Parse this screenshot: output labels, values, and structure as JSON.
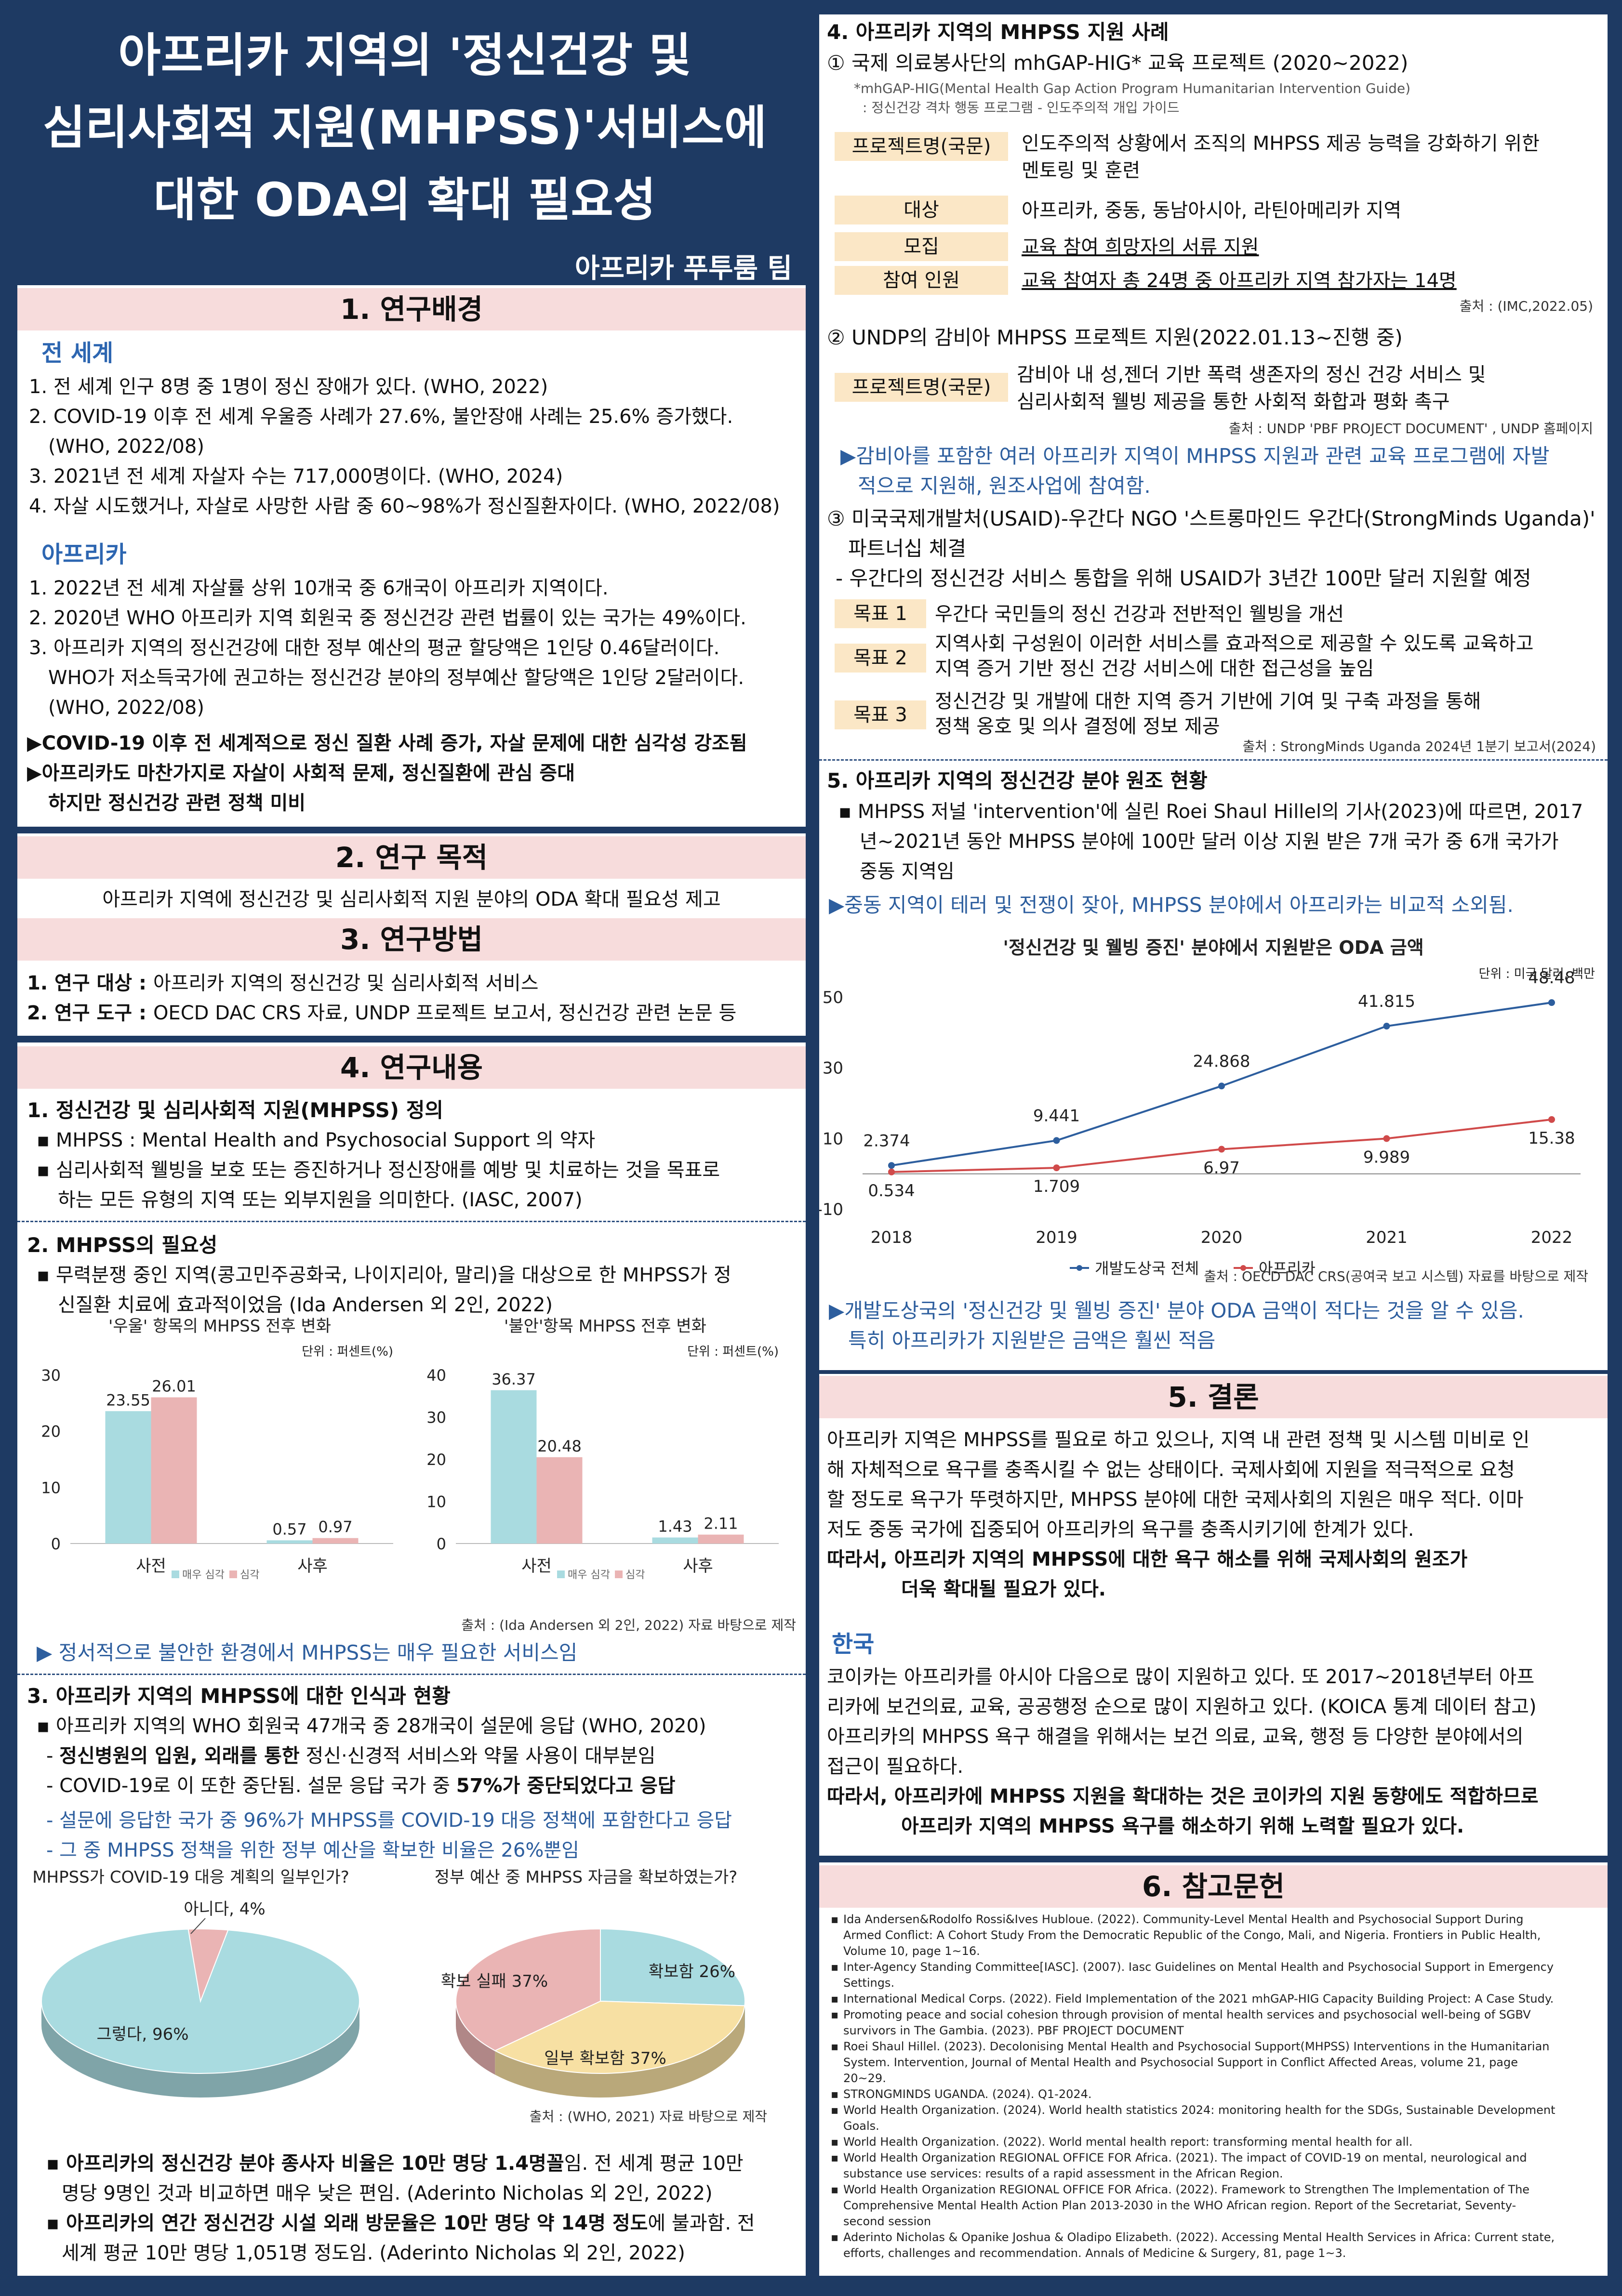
{
  "title": {
    "line1": "아프리카 지역의 '정신건강 및",
    "line2": "심리사회적 지원(MHPSS)'서비스에",
    "line3": "대한 ODA의 확대 필요성",
    "team": "아프리카 푸투룸 팀"
  },
  "s1": {
    "head": "1. 연구배경",
    "world_label": "전 세계",
    "world": [
      "1. 전 세계 인구 8명 중 1명이 정신 장애가 있다. (WHO, 2022)",
      "2. COVID-19 이후 전 세계 우울증 사례가 27.6%, 불안장애 사례는 25.6% 증가했다.",
      "(WHO, 2022/08)",
      "3. 2021년 전 세계 자살자 수는 717,000명이다. (WHO, 2024)",
      "4. 자살 시도했거나, 자살로 사망한 사람 중 60~98%가 정신질환자이다. (WHO, 2022/08)"
    ],
    "africa_label": "아프리카",
    "africa": [
      "1. 2022년 전 세계 자살률 상위 10개국 중 6개국이 아프리카 지역이다.",
      "2. 2020년 WHO 아프리카 지역 회원국 중 정신건강 관련 법률이 있는 국가는 49%이다.",
      "3. 아프리카 지역의 정신건강에 대한 정부 예산의 평균 할당액은 1인당 0.46달러이다.",
      "WHO가 저소득국가에 권고하는 정신건강 분야의 정부예산 할당액은 1인당 2달러이다.",
      "(WHO, 2022/08)"
    ],
    "conc1": "▶COVID-19 이후 전 세계적으로 정신 질환 사례 증가, 자살 문제에 대한 심각성 강조됨",
    "conc2": "▶아프리카도 마찬가지로 자살이 사회적 문제, 정신질환에 관심 증대",
    "conc3": "하지만 정신건강 관련 정책 미비"
  },
  "s2": {
    "head": "2. 연구 목적",
    "text": "아프리카 지역에 정신건강 및 심리사회적 지원 분야의 ODA 확대 필요성 제고"
  },
  "s3": {
    "head": "3. 연구방법",
    "l1_bold": "1. 연구 대상 : ",
    "l1": "아프리카 지역의 정신건강 및 심리사회적 서비스",
    "l2_bold": "2. 연구 도구 : ",
    "l2": "OECD DAC CRS 자료, UNDP 프로젝트 보고서, 정신건강 관련 논문 등"
  },
  "s4": {
    "head": "4. 연구내용",
    "p1_title": "1. 정신건강 및 심리사회적 지원(MHPSS) 정의",
    "p1_a": "▪  MHPSS : Mental Health and Psychosocial Support 의 약자",
    "p1_b": "▪  심리사회적 웰빙을 보호 또는 증진하거나 정신장애를 예방 및 치료하는 것을 목표로",
    "p1_c": "하는 모든 유형의 지역 또는 외부지원을 의미한다. (IASC, 2007)",
    "p2_title": "2. MHPSS의 필요성",
    "p2_a": "▪  무력분쟁 중인 지역(콩고민주공화국, 나이지리아, 말리)을 대상으로 한 MHPSS가 정",
    "p2_b": "신질환 치료에 효과적이었음 (Ida Andersen 외 2인, 2022)",
    "p2_source": "출처 : (Ida Andersen 외 2인, 2022) 자료 바탕으로 제작",
    "p2_conc": "▶ 정서적으로 불안한 환경에서 MHPSS는 매우 필요한 서비스임",
    "p3_title": "3. 아프리카 지역의 MHPSS에 대한 인식과 현황",
    "p3_a": "▪  아프리카 지역의 WHO 회원국 47개국 중 28개국이 설문에 응답 (WHO, 2020)",
    "p3_b1": "-  ",
    "p3_b_bold": "정신병원의 입원, 외래를 통한",
    "p3_b2": " 정신·신경적 서비스와 약물 사용이 대부분임",
    "p3_c1": "-  COVID-19로 이 또한 중단됨. 설문 응답 국가 중 ",
    "p3_c_bold": "57%가 중단되었다고 응답",
    "p3_d": "-  설문에 응답한 국가 중 96%가 MHPSS를 COVID-19 대응 정책에 포함한다고 응답",
    "p3_e": "-  그 중 MHPSS 정책을 위한 정부 예산을 확보한 비율은 26%뿐임",
    "pie_source": "출처 : (WHO, 2021) 자료 바탕으로 제작",
    "b1_bold": "▪  아프리카의 정신건강 분야 종사자 비율은 10만 명당 1.4명꼴",
    "b1": "임. 전 세계 평균 10만",
    "b1_c": "명당 9명인 것과 비교하면 매우 낮은 편임. (Aderinto Nicholas 외 2인, 2022)",
    "b2_bold": "▪  아프리카의 연간 정신건강 시설 외래 방문율은 10만 명당 약 14명 정도",
    "b2": "에 불과함. 전",
    "b2_c": "세계 평균 10만 명당 1,051명 정도임. (Aderinto Nicholas 외 2인, 2022)"
  },
  "s4r": {
    "p4_title": "4. 아프리카 지역의 MHPSS 지원 사례",
    "c1_title": "① 국제 의료봉사단의 mhGAP-HIG* 교육 프로젝트 (2020~2022)",
    "c1_note1": "*mhGAP-HIG(Mental Health Gap Action Program Humanitarian Intervention Guide)",
    "c1_note2": ": 정신건강 격차 행동 프로그램 - 인도주의적 개입 가이드",
    "rows": [
      {
        "label": "프로젝트명(국문)",
        "value": "인도주의적 상황에서 조직의 MHPSS 제공 능력을 강화하기 위한",
        "value2": "멘토링 및 훈련"
      },
      {
        "label": "대상",
        "value": "아프리카, 중동, 동남아시아, 라틴아메리카 지역",
        "value2": ""
      },
      {
        "label": "모집",
        "value": "교육 참여 희망자의 서류 지원",
        "value2": ""
      },
      {
        "label": "참여 인원",
        "value": "교육 참여자 총 24명 중 아프리카 지역 참가자는 14명",
        "value2": ""
      }
    ],
    "c1_source": "출처 : (IMC,2022.05)",
    "c2_title": "② UNDP의 감비아 MHPSS 프로젝트 지원(2022.01.13~진행 중)",
    "c2_label": "프로젝트명(국문)",
    "c2_value1": "감비아 내 성,젠더 기반 폭력 생존자의 정신 건강 서비스 및",
    "c2_value2": "심리사회적 웰빙 제공을 통한 사회적 화합과 평화 촉구",
    "c2_source": "출처 : UNDP 'PBF PROJECT DOCUMENT' , UNDP 홈페이지",
    "c2_conc1": "▶감비아를 포함한 여러 아프리카 지역이 MHPSS 지원과 관련 교육 프로그램에 자발",
    "c2_conc2": "적으로 지원해, 원조사업에 참여함.",
    "c3_title1": "③ 미국국제개발처(USAID)-우간다 NGO '스트롱마인드 우간다(StrongMinds Uganda)'",
    "c3_title2": "파트너십 체결",
    "c3_sub": "- 우간다의 정신건강 서비스 통합을 위해 USAID가 3년간 100만 달러 지원할 예정",
    "goals": [
      {
        "label": "목표 1",
        "v1": "우간다 국민들의 정신 건강과 전반적인 웰빙을 개선",
        "v2": ""
      },
      {
        "label": "목표 2",
        "v1": "지역사회 구성원이 이러한 서비스를 효과적으로 제공할 수 있도록 교육하고",
        "v2": "지역 증거 기반 정신 건강 서비스에 대한 접근성을 높임"
      },
      {
        "label": "목표 3",
        "v1": "정신건강 및 개발에 대한 지역 증거 기반에 기여 및 구축 과정을 통해",
        "v2": "정책 옹호 및 의사 결정에 정보 제공"
      }
    ],
    "c3_source": "출처 : StrongMinds Uganda 2024년 1분기 보고서(2024)",
    "p5_title": "5. 아프리카 지역의 정신건강 분야 원조 현황",
    "p5_a": "▪  MHPSS 저널 'intervention'에 실린 Roei Shaul Hillel의 기사(2023)에 따르면, 2017",
    "p5_b": "년~2021년 동안 MHPSS 분야에 100만 달러 이상 지원 받은 7개 국가 중 6개 국가가",
    "p5_c": "중동 지역임",
    "p5_conc": "▶중동 지역이 테러 및 전쟁이 잦아, MHPSS 분야에서 아프리카는 비교적 소외됨.",
    "line_source": "출처 : OECD DAC CRS(공여국 보고 시스템) 자료를 바탕으로 제작",
    "line_conc1": "▶개발도상국의 '정신건강 및 웰빙 증진' 분야 ODA 금액이 적다는 것을 알 수 있음.",
    "line_conc2": "특히 아프리카가 지원받은 금액은 훨씬 적음"
  },
  "s5": {
    "head": "5. 결론",
    "l1": "아프리카 지역은 MHPSS를 필요로 하고 있으나, 지역 내 관련 정책 및 시스템 미비로 인",
    "l2": "해 자체적으로 욕구를 충족시킬 수 없는 상태이다. 국제사회에 지원을 적극적으로 요청",
    "l3": "할 정도로 욕구가 뚜렷하지만, MHPSS 분야에 대한 국제사회의 지원은 매우 적다. 이마",
    "l4": "저도 중동 국가에 집중되어 아프리카의 욕구를 충족시키기에 한계가 있다.",
    "b1": "따라서, 아프리카 지역의 MHPSS에 대한 욕구 해소를 위해 국제사회의 원조가",
    "b2": "더욱 확대될 필요가 있다.",
    "korea_label": "한국",
    "k1": "코이카는 아프리카를 아시아 다음으로 많이 지원하고 있다. 또 2017~2018년부터 아프",
    "k2": "리카에 보건의료, 교육, 공공행정 순으로 많이 지원하고 있다. (KOICA 통계 데이터 참고)",
    "k3": "아프리카의 MHPSS 욕구 해결을 위해서는 보건 의료, 교육, 행정 등 다양한 분야에서의",
    "k4": "접근이 필요하다.",
    "kb1": "따라서, 아프리카에 MHPSS 지원을 확대하는 것은 코이카의 지원 동향에도 적합하므로",
    "kb2": "아프리카 지역의 MHPSS 욕구를 해소하기 위해 노력할 필요가 있다."
  },
  "s6": {
    "head": "6. 참고문헌",
    "refs": [
      "Ida Andersen&Rodolfo Rossi&Ives Hubloue. (2022). Community-Level Mental Health and Psychosocial Support During",
      "Armed Conflict: A Cohort Study From the Democratic Republic of the Congo, Mali, and Nigeria. Frontiers in Public Health,",
      "Volume 10, page 1~16.",
      "Inter-Agency Standing Committee[IASC]. (2007). Iasc Guidelines on Mental Health and Psychosocial Support in Emergency",
      "Settings.",
      "International Medical Corps. (2022). Field Implementation of the 2021 mhGAP-HIG Capacity Building Project: A Case Study.",
      "Promoting peace and social cohesion through provision of mental health services and psychosocial well-being of SGBV",
      "survivors in The Gambia. (2023). PBF PROJECT DOCUMENT",
      "Roei Shaul Hillel. (2023). Decolonising Mental Health and Psychosocial Support(MHPSS) Interventions in the Humanitarian",
      "System. Intervention, Journal of Mental Health and Psychosocial Support in Conflict Affected Areas, volume 21, page",
      "20~29.",
      "STRONGMINDS UGANDA. (2024). Q1-2024.",
      "World Health Organization. (2024). World health statistics 2024: monitoring health for the SDGs, Sustainable Development",
      "Goals.",
      "World Health Organization. (2022). World mental health report: transforming mental health for all.",
      "World Health Organization REGIONAL OFFICE FOR Africa. (2021). The impact of COVID-19 on mental, neurological and",
      "substance use services: results of a rapid assessment in the African Region.",
      "World Health Organization REGIONAL OFFICE FOR Africa. (2022). Framework to Strengthen The Implementation of The",
      "Comprehensive Mental Health Action Plan 2013-2030 in the WHO African region. Report of the Secretariat, Seventy-",
      "second session",
      "Aderinto Nicholas & Opanike Joshua & Oladipo Elizabeth. (2022). Accessing Mental Health Services in Africa: Current state,",
      "efforts, challenges and recommendation. Annals of Medicine & Surgery, 81, page 1~3."
    ],
    "bullet_lines": [
      0,
      3,
      5,
      6,
      8,
      11,
      12,
      14,
      15,
      17,
      20
    ]
  },
  "chart_data": [
    {
      "type": "bar",
      "title": "'우울' 항목의 MHPSS 전후 변화",
      "unit": "단위 : 퍼센트(%)",
      "categories": [
        "사전",
        "사후"
      ],
      "series": [
        {
          "name": "매우 심각",
          "values": [
            23.55,
            0.57
          ],
          "color": "#a9dbe0"
        },
        {
          "name": "심각",
          "values": [
            26.01,
            0.97
          ],
          "color": "#eab4b4"
        }
      ],
      "ylim": [
        0,
        30
      ],
      "yticks": [
        0,
        10,
        20,
        30
      ]
    },
    {
      "type": "bar",
      "title": "'불안'항목 MHPSS 전후 변화",
      "unit": "단위 : 퍼센트(%)",
      "categories": [
        "사전",
        "사후"
      ],
      "series": [
        {
          "name": "매우 심각",
          "values": [
            36.37,
            1.43
          ],
          "color": "#a9dbe0"
        },
        {
          "name": "심각",
          "values": [
            20.48,
            2.11
          ],
          "color": "#eab4b4"
        }
      ],
      "ylim": [
        0,
        40
      ],
      "yticks": [
        0,
        10,
        20,
        30,
        40
      ]
    },
    {
      "type": "pie",
      "title": "MHPSS가 COVID-19 대응 계획의 일부인가?",
      "slices": [
        {
          "label": "그렇다, 96%",
          "value": 96,
          "color": "#a9dbe0"
        },
        {
          "label": "아니다, 4%",
          "value": 4,
          "color": "#eab4b4"
        }
      ]
    },
    {
      "type": "pie",
      "title": "정부 예산 중 MHPSS 자금을 확보하였는가?",
      "slices": [
        {
          "label": "확보함 26%",
          "value": 26,
          "color": "#a9dbe0"
        },
        {
          "label": "일부 확보함 37%",
          "value": 37,
          "color": "#f7e0a3"
        },
        {
          "label": "확보 실패 37%",
          "value": 37,
          "color": "#eab4b4"
        }
      ]
    },
    {
      "type": "line",
      "title": "'정신건강 및 웰빙 증진' 분야에서 지원받은 ODA 금액",
      "unit": "단위 : 미국 달러, 백만",
      "x": [
        "2018",
        "2019",
        "2020",
        "2021",
        "2022"
      ],
      "series": [
        {
          "name": "개발도상국 전체",
          "values": [
            2.374,
            9.441,
            24.868,
            41.815,
            48.48
          ],
          "color": "#2d5e9e"
        },
        {
          "name": "아프리카",
          "values": [
            0.534,
            1.709,
            6.97,
            9.989,
            15.38
          ],
          "color": "#d04a4a"
        }
      ],
      "ylim": [
        -10,
        50
      ],
      "yticks": [
        -10,
        10,
        30,
        50
      ]
    }
  ]
}
